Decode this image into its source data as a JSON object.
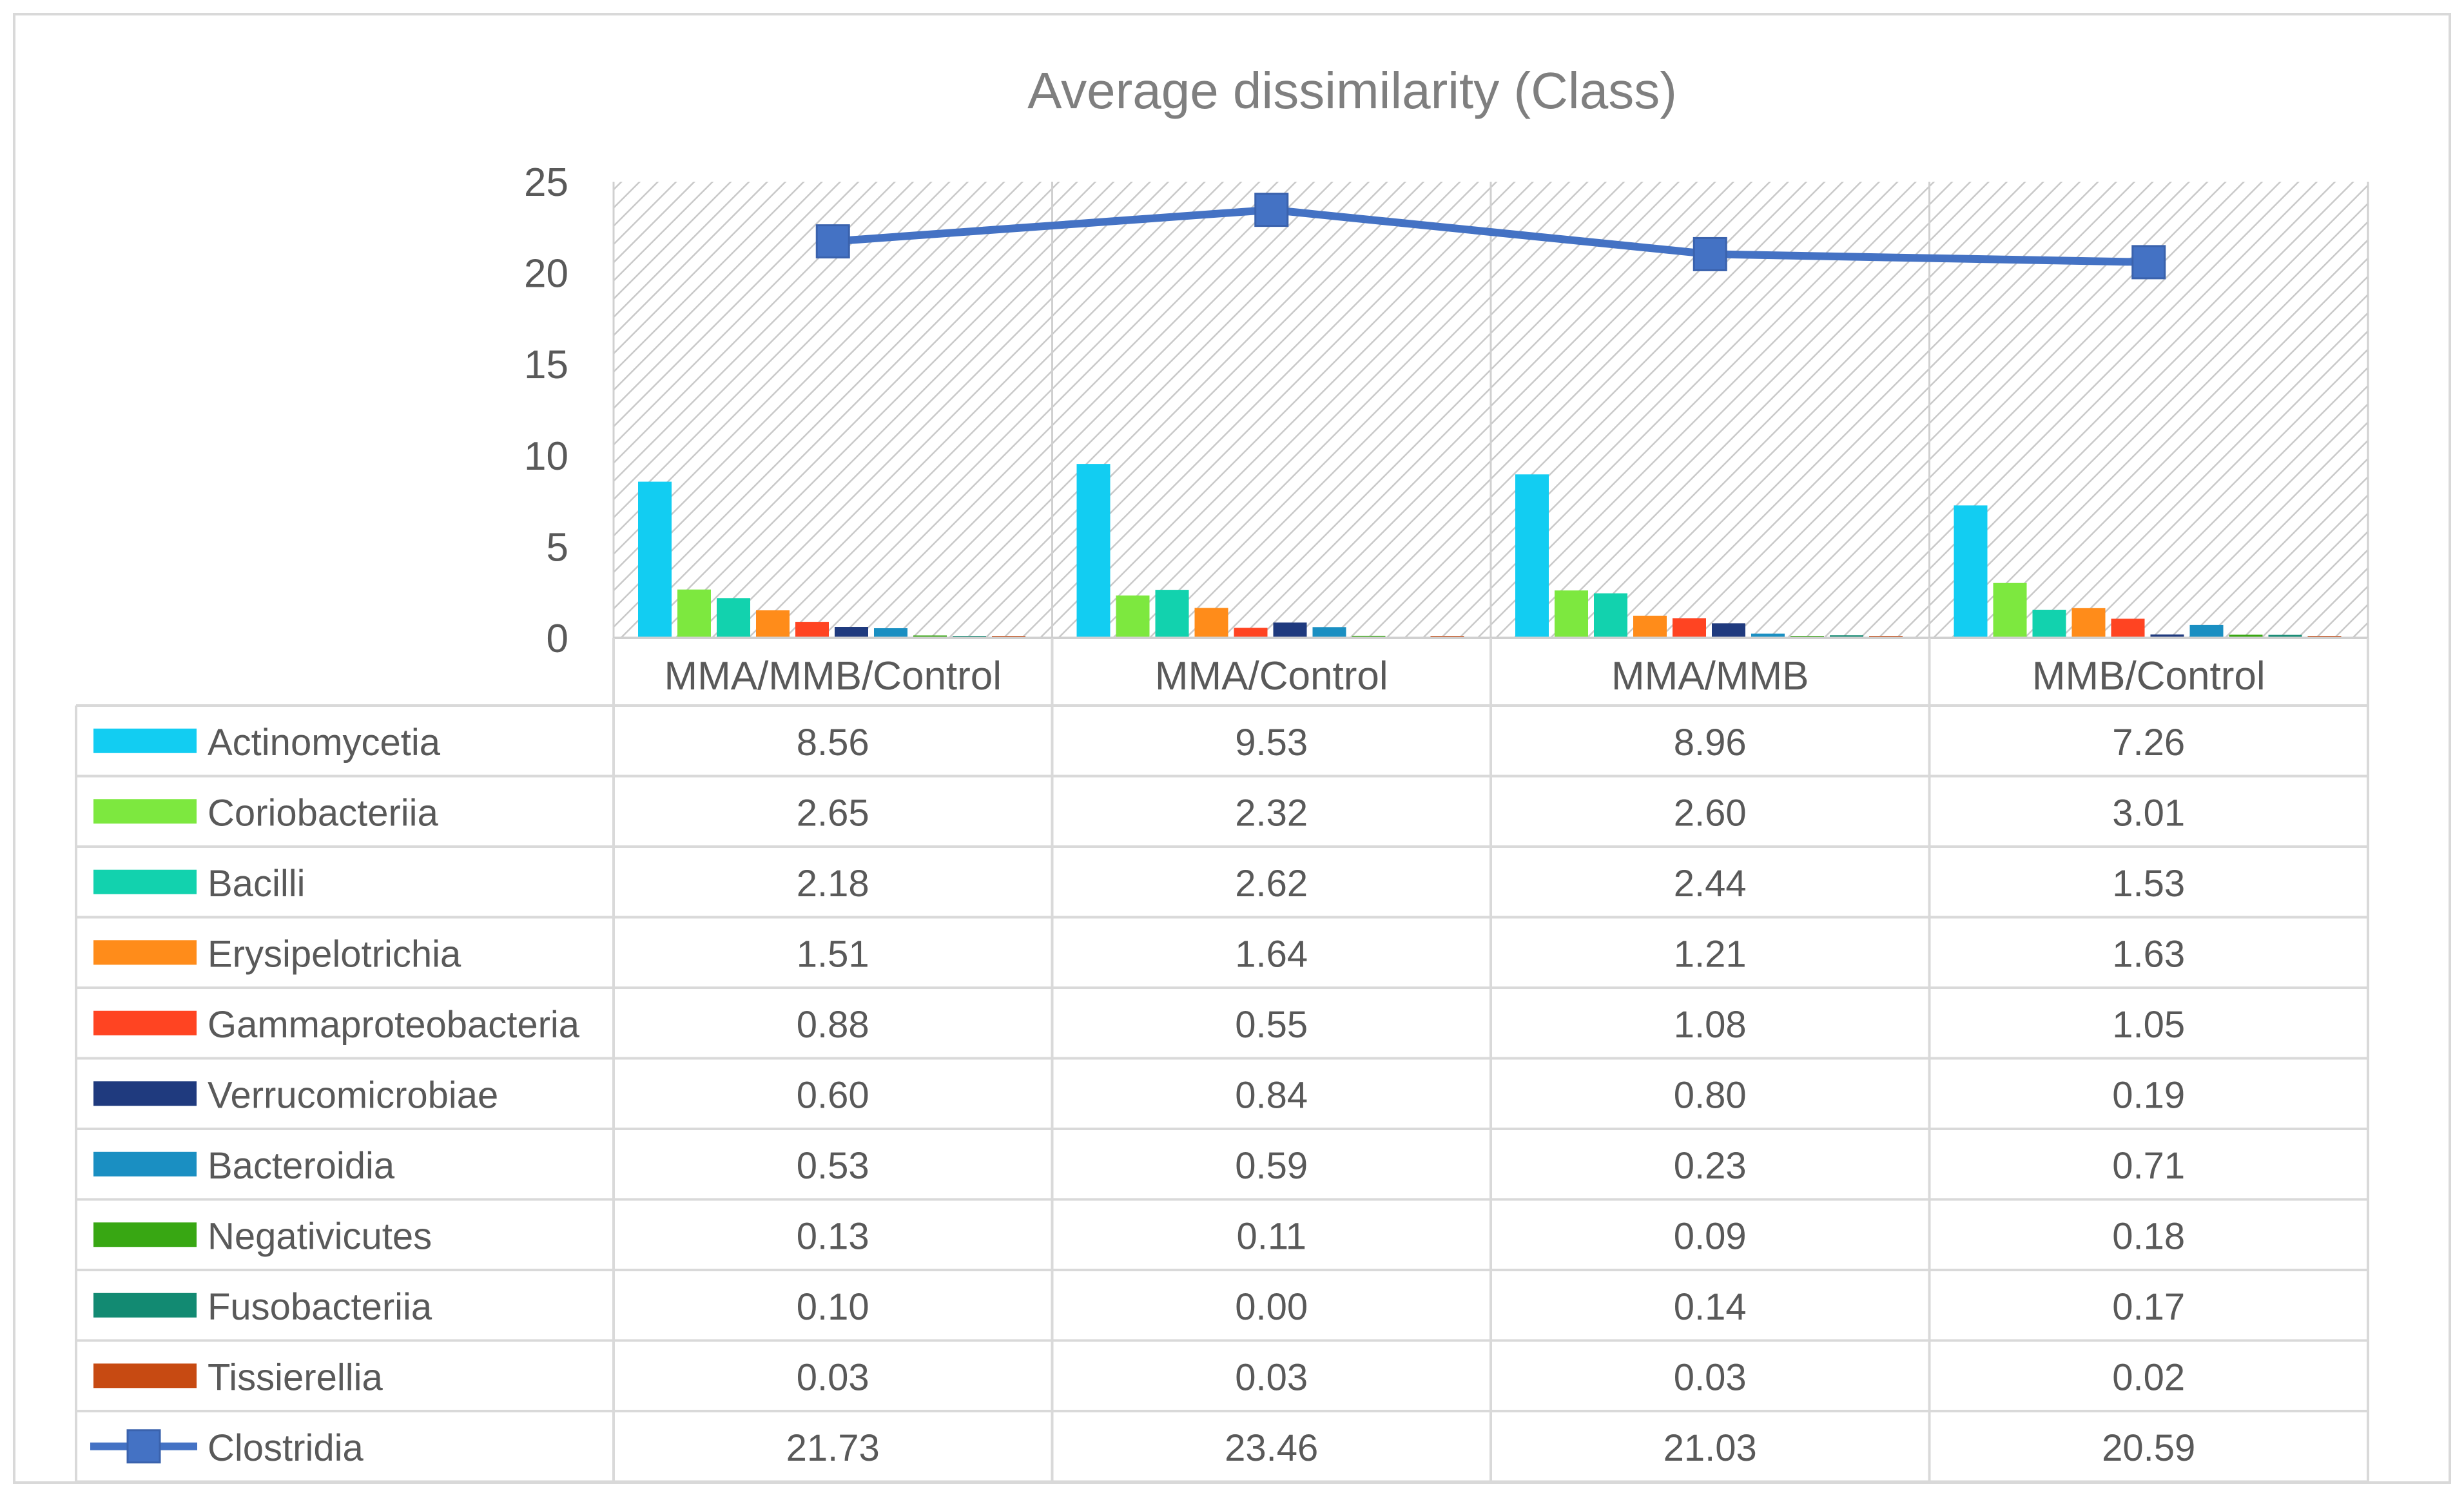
{
  "chart_data": {
    "type": "bar",
    "title": "Average dissimilarity (Class)",
    "xlabel": "",
    "ylabel": "",
    "ylim": [
      0,
      25
    ],
    "yticks": [
      0,
      5,
      10,
      15,
      20,
      25
    ],
    "grid": false,
    "legend": "data-table",
    "categories": [
      "MMA/MMB/Control",
      "MMA/Control",
      "MMA/MMB",
      "MMB/Control"
    ],
    "series": [
      {
        "name": "Actinomycetia",
        "type": "bar",
        "color": "#12CDF2",
        "values": [
          8.56,
          9.53,
          8.96,
          7.26
        ],
        "labels": [
          "8.56",
          "9.53",
          "8.96",
          "7.26"
        ]
      },
      {
        "name": "Coriobacteriia",
        "type": "bar",
        "color": "#7DE83F",
        "values": [
          2.65,
          2.32,
          2.6,
          3.01
        ],
        "labels": [
          "2.65",
          "2.32",
          "2.60",
          "3.01"
        ]
      },
      {
        "name": "Bacilli",
        "type": "bar",
        "color": "#12D2AE",
        "values": [
          2.18,
          2.62,
          2.44,
          1.53
        ],
        "labels": [
          "2.18",
          "2.62",
          "2.44",
          "1.53"
        ]
      },
      {
        "name": "Erysipelotrichia",
        "type": "bar",
        "color": "#FF8C1A",
        "values": [
          1.51,
          1.64,
          1.21,
          1.63
        ],
        "labels": [
          "1.51",
          "1.64",
          "1.21",
          "1.63"
        ]
      },
      {
        "name": "Gammaproteobacteria",
        "type": "bar",
        "color": "#FF4422",
        "values": [
          0.88,
          0.55,
          1.08,
          1.05
        ],
        "labels": [
          "0.88",
          "0.55",
          "1.08",
          "1.05"
        ]
      },
      {
        "name": "Verrucomicrobiae",
        "type": "bar",
        "color": "#1F3A7E",
        "values": [
          0.6,
          0.84,
          0.8,
          0.19
        ],
        "labels": [
          "0.60",
          "0.84",
          "0.80",
          "0.19"
        ]
      },
      {
        "name": "Bacteroidia",
        "type": "bar",
        "color": "#1A8FC2",
        "values": [
          0.53,
          0.59,
          0.23,
          0.71
        ],
        "labels": [
          "0.53",
          "0.59",
          "0.23",
          "0.71"
        ]
      },
      {
        "name": "Negativicutes",
        "type": "bar",
        "color": "#38A713",
        "values": [
          0.13,
          0.11,
          0.09,
          0.18
        ],
        "labels": [
          "0.13",
          "0.11",
          "0.09",
          "0.18"
        ]
      },
      {
        "name": "Fusobacteriia",
        "type": "bar",
        "color": "#128A72",
        "values": [
          0.1,
          0.0,
          0.14,
          0.17
        ],
        "labels": [
          "0.10",
          "0.00",
          "0.14",
          "0.17"
        ]
      },
      {
        "name": "Tissierellia",
        "type": "bar",
        "color": "#C74A12",
        "values": [
          0.03,
          0.03,
          0.03,
          0.02
        ],
        "labels": [
          "0.03",
          "0.03",
          "0.03",
          "0.02"
        ]
      },
      {
        "name": "Clostridia",
        "type": "line",
        "marker": "square",
        "color": "#4472C4",
        "values": [
          21.73,
          23.46,
          21.03,
          20.59
        ],
        "labels": [
          "21.73",
          "23.46",
          "21.03",
          "20.59"
        ]
      }
    ]
  },
  "colors": {
    "frame_border": "#D9D9D9",
    "grid_line": "#D0D0D0",
    "hatch": "#C9C9C9",
    "text": "#595959",
    "title_text": "#7F7F7F"
  }
}
